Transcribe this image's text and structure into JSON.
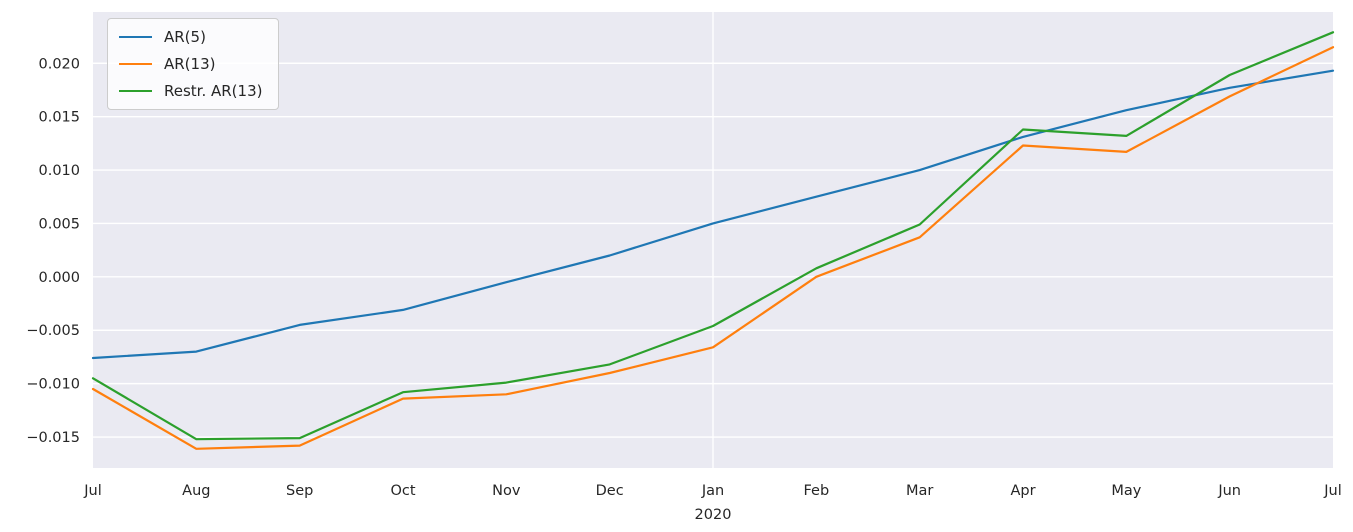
{
  "chart_data": {
    "type": "line",
    "title": "",
    "xlabel": "",
    "ylabel": "",
    "x_categories": [
      "Jul",
      "Aug",
      "Sep",
      "Oct",
      "Nov",
      "Dec",
      "Jan",
      "Feb",
      "Mar",
      "Apr",
      "May",
      "Jun",
      "Jul"
    ],
    "x_tick_sublabels": [
      "",
      "",
      "",
      "",
      "",
      "",
      "2020",
      "",
      "",
      "",
      "",
      "",
      ""
    ],
    "x_major_gridline_indices": [
      6
    ],
    "series": [
      {
        "name": "AR(5)",
        "color": "#1f77b4",
        "values": [
          -0.0076,
          -0.007,
          -0.0045,
          -0.0031,
          -0.0005,
          0.002,
          0.005,
          0.0075,
          0.01,
          0.0131,
          0.0156,
          0.0177,
          0.0193
        ]
      },
      {
        "name": "AR(13)",
        "color": "#ff7f0e",
        "values": [
          -0.0105,
          -0.0161,
          -0.0158,
          -0.0114,
          -0.011,
          -0.009,
          -0.0066,
          0.0,
          0.0037,
          0.0123,
          0.0117,
          0.0169,
          0.0215
        ]
      },
      {
        "name": "Restr. AR(13)",
        "color": "#2ca02c",
        "values": [
          -0.0095,
          -0.0152,
          -0.0151,
          -0.0108,
          -0.0099,
          -0.0082,
          -0.0046,
          0.0008,
          0.0049,
          0.0138,
          0.0132,
          0.0189,
          0.0229
        ]
      }
    ],
    "yticks": [
      0.02,
      0.015,
      0.01,
      0.005,
      0.0,
      -0.005,
      -0.01,
      -0.015
    ],
    "ytick_labels": [
      "0.020",
      "0.015",
      "0.010",
      "0.005",
      "0.000",
      "−0.005",
      "−0.010",
      "−0.015"
    ],
    "ylim": [
      -0.0179,
      0.0248
    ],
    "grid": true,
    "legend_position": "upper left",
    "legend_entries": [
      "AR(5)",
      "AR(13)",
      "Restr. AR(13)"
    ],
    "colors": {
      "plot_background": "#eaeaf2",
      "figure_background": "#ffffff",
      "gridline": "#ffffff",
      "text": "#262626",
      "legend_border": "#cccccc"
    }
  }
}
